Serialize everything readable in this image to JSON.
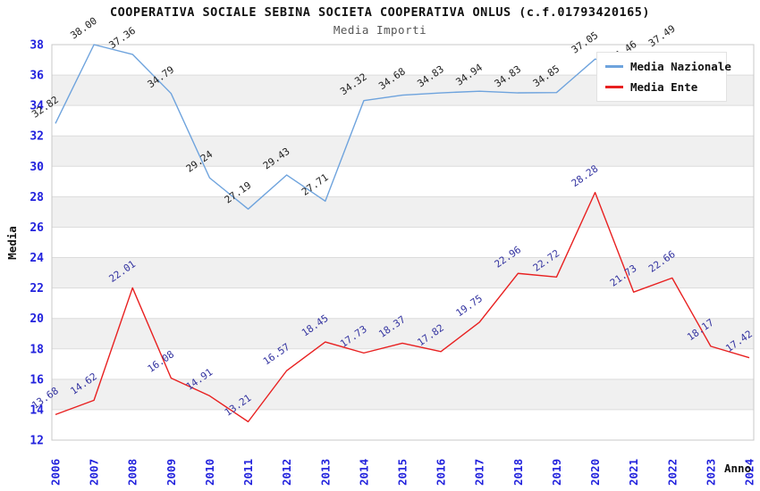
{
  "header": {
    "title": "COOPERATIVA SOCIALE SEBINA SOCIETA COOPERATIVA ONLUS (c.f.01793420165)",
    "subtitle": "Media Importi"
  },
  "colors": {
    "nazionale_line": "#6ea3dd",
    "ente_line": "#e82020",
    "nazionale_label": "#222222",
    "ente_label": "#3333a0",
    "axis_tick": "#2222dd",
    "band_gray": "#f0f0f0",
    "gridline": "#dcdcdc",
    "plot_border": "#c8c8c8"
  },
  "chart_data": {
    "type": "line",
    "title": "COOPERATIVA SOCIALE SEBINA SOCIETA COOPERATIVA ONLUS (c.f.01793420165)",
    "subtitle": "Media Importi",
    "xlabel": "Anno",
    "ylabel": "Media",
    "x": [
      2006,
      2007,
      2008,
      2009,
      2010,
      2011,
      2012,
      2013,
      2014,
      2015,
      2016,
      2017,
      2018,
      2019,
      2020,
      2021,
      2022,
      2023,
      2024
    ],
    "ylim": [
      12,
      38
    ],
    "y_tick_step": 2,
    "grid": true,
    "legend_position": "top-right",
    "series": [
      {
        "name": "Media Nazionale",
        "color": "#6ea3dd",
        "label_color": "#222222",
        "values": [
          32.82,
          38.0,
          37.36,
          34.79,
          29.24,
          27.19,
          29.43,
          27.71,
          34.32,
          34.68,
          34.83,
          34.94,
          34.83,
          34.85,
          37.05,
          36.46,
          37.49,
          null,
          null
        ]
      },
      {
        "name": "Media Ente",
        "color": "#e82020",
        "label_color": "#3333a0",
        "values": [
          13.68,
          14.62,
          22.01,
          16.08,
          14.91,
          13.21,
          16.57,
          18.45,
          17.73,
          18.37,
          17.82,
          19.75,
          22.96,
          22.72,
          28.28,
          21.73,
          22.66,
          18.17,
          17.42
        ]
      }
    ]
  }
}
